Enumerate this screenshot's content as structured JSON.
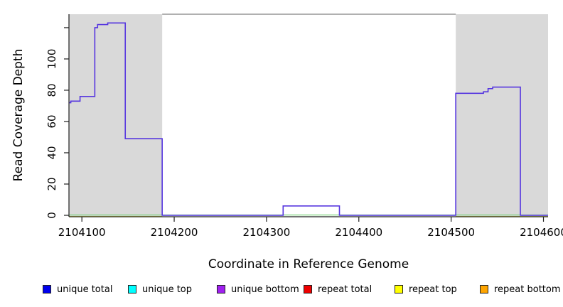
{
  "chart_data": {
    "type": "line",
    "subtype": "step",
    "title": "",
    "xlabel": "Coordinate in Reference Genome",
    "ylabel": "Read Coverage Depth",
    "xlim": [
      2104086,
      2104605
    ],
    "ylim": [
      0,
      128.6
    ],
    "grid": false,
    "x_ticks": [
      {
        "value": 2104100,
        "label": "2104100"
      },
      {
        "value": 2104200,
        "label": "2104200"
      },
      {
        "value": 2104300,
        "label": "2104300"
      },
      {
        "value": 2104400,
        "label": "2104400"
      },
      {
        "value": 2104500,
        "label": "2104500"
      },
      {
        "value": 2104600,
        "label": "2104600"
      }
    ],
    "y_ticks": [
      {
        "value": 0,
        "label": "0"
      },
      {
        "value": 20,
        "label": "20"
      },
      {
        "value": 40,
        "label": "40"
      },
      {
        "value": 60,
        "label": "60"
      },
      {
        "value": 80,
        "label": "80"
      },
      {
        "value": 100,
        "label": "100"
      },
      {
        "value": 120,
        "label": ""
      }
    ],
    "shaded_regions": [
      {
        "name": "repeat-region-left",
        "x_start": 2104086,
        "x_end": 2104187,
        "color": "#d9d9d9"
      },
      {
        "name": "repeat-region-right",
        "x_start": 2104505,
        "x_end": 2104605,
        "color": "#d9d9d9"
      }
    ],
    "series": [
      {
        "name": "coverage-step-line",
        "color": "#5535df",
        "step_points": [
          [
            2104086,
            72
          ],
          [
            2104088,
            73
          ],
          [
            2104098,
            76
          ],
          [
            2104114,
            120
          ],
          [
            2104117,
            122
          ],
          [
            2104128,
            123
          ],
          [
            2104147,
            49
          ],
          [
            2104187,
            0
          ],
          [
            2104318,
            6
          ],
          [
            2104379,
            0
          ],
          [
            2104505,
            78
          ],
          [
            2104535,
            79
          ],
          [
            2104540,
            81
          ],
          [
            2104545,
            82
          ],
          [
            2104575,
            0
          ],
          [
            2104605,
            0
          ]
        ]
      },
      {
        "name": "zero-baseline-green",
        "color": "#7fd37f",
        "y": 0
      },
      {
        "name": "zero-baseline-yellow-in-repeat-regions",
        "color": "#e3e356",
        "y": 0
      }
    ],
    "legend_position": "bottom"
  },
  "axes_style": {
    "axis_color": "#1f1f1f",
    "top_border_color": "#969696"
  },
  "legend": {
    "items": [
      {
        "id": "unique-total",
        "label": "unique total",
        "color": "#0000ee"
      },
      {
        "id": "unique-top",
        "label": "unique top",
        "color": "#00ffff"
      },
      {
        "id": "unique-bottom",
        "label": "unique bottom",
        "color": "#a020f0"
      },
      {
        "id": "repeat-total",
        "label": "repeat total",
        "color": "#ee0000"
      },
      {
        "id": "repeat-top",
        "label": "repeat top",
        "color": "#ffff00"
      },
      {
        "id": "repeat-bottom",
        "label": "repeat bottom",
        "color": "#ffa500"
      }
    ]
  }
}
